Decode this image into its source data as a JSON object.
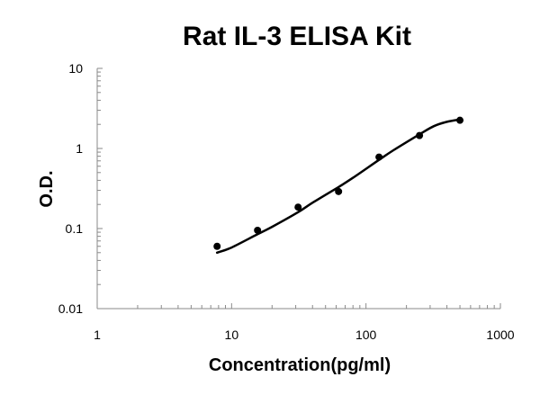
{
  "chart_data": {
    "type": "scatter",
    "title": "Rat IL-3 ELISA Kit",
    "xlabel": "Concentration(pg/ml)",
    "ylabel": "O.D.",
    "x_scale": "log",
    "y_scale": "log",
    "xlim": [
      1,
      1000
    ],
    "ylim": [
      0.01,
      10
    ],
    "x_tick_labels": [
      "1",
      "10",
      "100",
      "1000"
    ],
    "y_tick_labels": [
      "0.01",
      "0.1",
      "1",
      "10"
    ],
    "grid": false,
    "legend": "none",
    "points": {
      "x": [
        7.8,
        15.6,
        31.25,
        62.5,
        125,
        250,
        500
      ],
      "y": [
        0.06,
        0.095,
        0.185,
        0.29,
        0.78,
        1.45,
        2.25
      ]
    },
    "fit_curve": {
      "x": [
        7.8,
        10,
        15.6,
        20,
        31.25,
        40,
        62.5,
        80,
        125,
        160,
        250,
        320,
        400,
        500
      ],
      "y": [
        0.05,
        0.058,
        0.085,
        0.105,
        0.16,
        0.21,
        0.33,
        0.43,
        0.72,
        0.95,
        1.5,
        1.9,
        2.15,
        2.3
      ]
    },
    "marker_color": "#000000",
    "line_color": "#000000"
  }
}
